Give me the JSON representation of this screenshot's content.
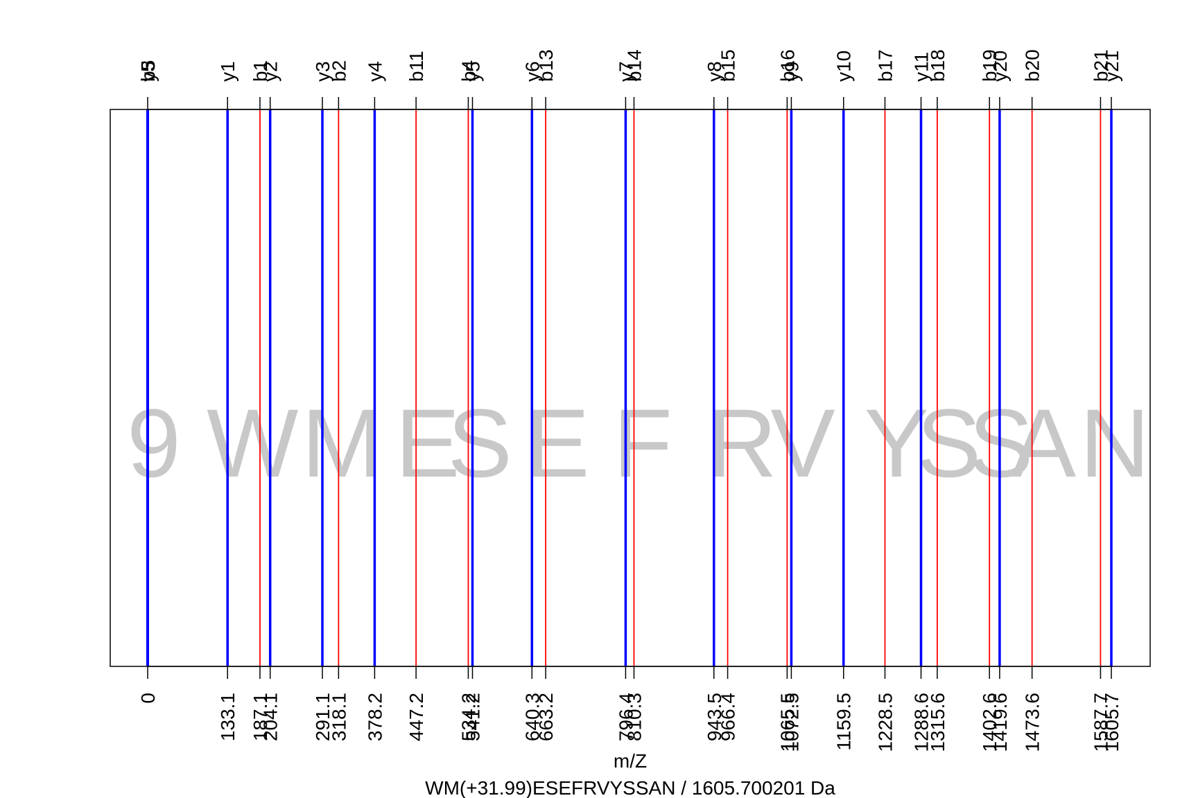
{
  "chart_data": {
    "type": "bar",
    "title": "WM(+31.99)ESEFRVYSSAN / 1605.700201 Da",
    "xlabel": "m/Z",
    "ylabel": "",
    "xlim": [
      0,
      1605.7
    ],
    "grid": false,
    "colors": {
      "b_ion": "#ff0000",
      "y_ion": "#0000ff",
      "frame": "#000000",
      "residue": "#c8c8c8",
      "zero_line": "#000000"
    },
    "zero": {
      "x": 0,
      "label": "0"
    },
    "series": [
      {
        "name": "b",
        "color": "#ff0000",
        "peaks": [
          {
            "label": "b1",
            "x": 187.1
          },
          {
            "label": "b2",
            "x": 318.1
          },
          {
            "label": "b11",
            "x": 447.2
          },
          {
            "label": "b4",
            "x": 534.2
          },
          {
            "label": "b13",
            "x": 663.2
          },
          {
            "label": "b14",
            "x": 810.3
          },
          {
            "label": "b15",
            "x": 966.4
          },
          {
            "label": "b16",
            "x": 1065.5
          },
          {
            "label": "b17",
            "x": 1228.5
          },
          {
            "label": "b18",
            "x": 1315.6
          },
          {
            "label": "b19",
            "x": 1402.6
          },
          {
            "label": "b20",
            "x": 1473.6
          },
          {
            "label": "b21",
            "x": 1587.7
          }
        ]
      },
      {
        "name": "y",
        "color": "#0000ff",
        "peaks": [
          {
            "label": "y1",
            "x": 133.1
          },
          {
            "label": "y2",
            "x": 204.1
          },
          {
            "label": "y3",
            "x": 291.1
          },
          {
            "label": "y4",
            "x": 378.2
          },
          {
            "label": "y5",
            "x": 541.2
          },
          {
            "label": "y6",
            "x": 640.3
          },
          {
            "label": "y7",
            "x": 796.4
          },
          {
            "label": "y8",
            "x": 943.5
          },
          {
            "label": "y9",
            "x": 1072.5
          },
          {
            "label": "y10",
            "x": 1159.5
          },
          {
            "label": "y11",
            "x": 1288.6
          },
          {
            "label": "y20",
            "x": 1419.6
          },
          {
            "label": "y21",
            "x": 1605.7
          }
        ]
      }
    ],
    "top_zero_labels": [
      "b5",
      "b3",
      "y5"
    ],
    "residues": [
      {
        "letter": "9",
        "x": 0
      },
      {
        "letter": "W",
        "x": 133.1
      },
      {
        "letter": "M",
        "x": 291.1
      },
      {
        "letter": "E",
        "x": 447.2
      },
      {
        "letter": "S",
        "x": 534.2
      },
      {
        "letter": "E",
        "x": 663.2
      },
      {
        "letter": "F",
        "x": 810.3
      },
      {
        "letter": "R",
        "x": 966.4
      },
      {
        "letter": "V",
        "x": 1072.5
      },
      {
        "letter": "Y",
        "x": 1228.5
      },
      {
        "letter": "S",
        "x": 1315.6
      },
      {
        "letter": "S",
        "x": 1402.6
      },
      {
        "letter": "A",
        "x": 1473.6
      },
      {
        "letter": "N",
        "x": 1587.7
      }
    ]
  }
}
